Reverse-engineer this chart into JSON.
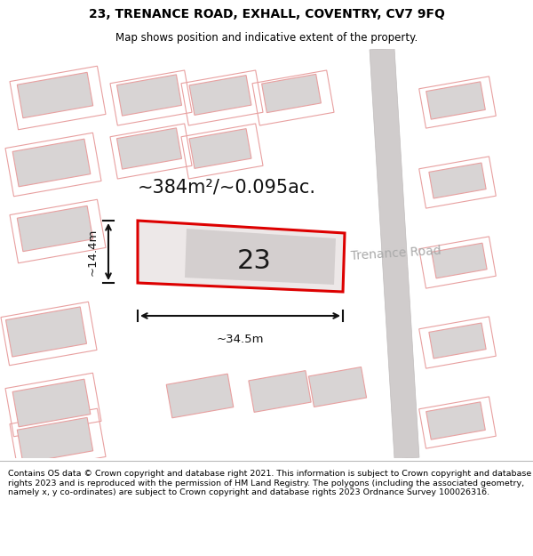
{
  "title": "23, TRENANCE ROAD, EXHALL, COVENTRY, CV7 9FQ",
  "subtitle": "Map shows position and indicative extent of the property.",
  "footer": "Contains OS data © Crown copyright and database right 2021. This information is subject to Crown copyright and database rights 2023 and is reproduced with the permission of HM Land Registry. The polygons (including the associated geometry, namely x, y co-ordinates) are subject to Crown copyright and database rights 2023 Ordnance Survey 100026316.",
  "area_label": "~384m²/~0.095ac.",
  "width_label": "~34.5m",
  "height_label": "~14.4m",
  "plot_number": "23",
  "road_label": "Trenance Road",
  "bg_color": "#ffffff",
  "map_bg": "#f7f2f2",
  "plot_outline_color": "#dd0000",
  "building_fill": "#d8d4d4",
  "building_outline": "#e8a0a0",
  "plot_fill_color": "#ede8e8",
  "road_fill": "#d0cccc",
  "road_edge": "#c0bcbc",
  "dim_color": "#111111",
  "road_label_color": "#aaaaaa",
  "title_fontsize": 10,
  "subtitle_fontsize": 8.5,
  "footer_fontsize": 6.8,
  "area_fontsize": 15,
  "plot_num_fontsize": 22,
  "dim_fontsize": 9.5,
  "road_fontsize": 10
}
